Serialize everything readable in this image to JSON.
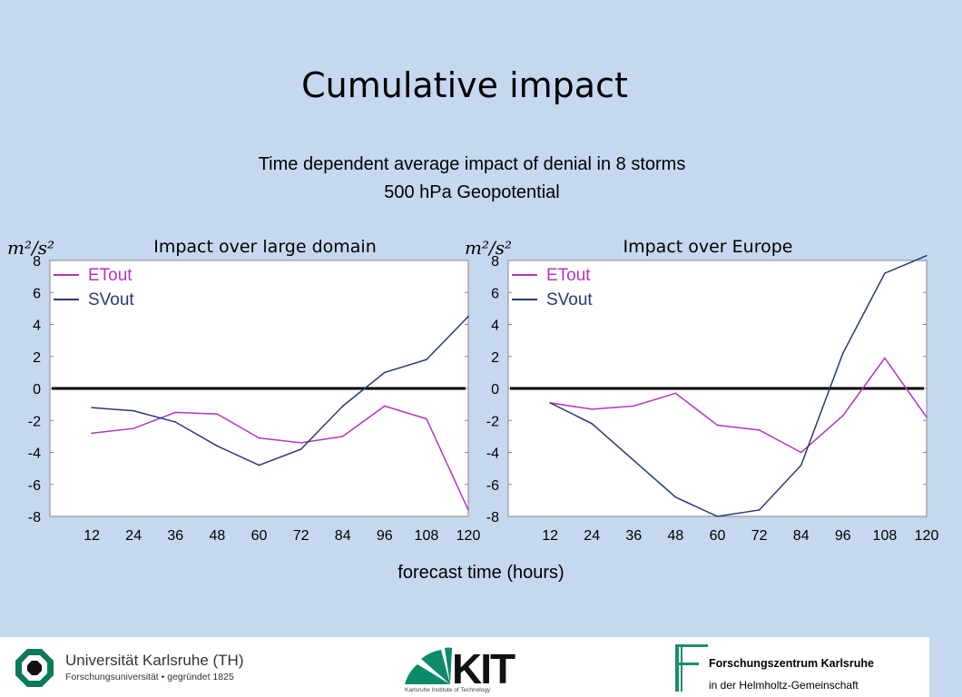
{
  "slide": {
    "title": "Cumulative impact",
    "subtitle_line1": "Time dependent average impact of denial in 8 storms",
    "subtitle_line2": "500 hPa Geopotential",
    "xlabel": "forecast time (hours)"
  },
  "colors": {
    "etout": "#b535c0",
    "svout": "#283a78",
    "zero_line": "#000000"
  },
  "chart_data": [
    {
      "type": "line",
      "title": "Impact over large domain",
      "ylabel": "m²/s²",
      "xlabel": "forecast time (hours)",
      "ylim": [
        -8,
        8
      ],
      "yticks": [
        8,
        6,
        4,
        2,
        0,
        -2,
        -4,
        -6,
        -8
      ],
      "xticks": [
        12,
        24,
        36,
        48,
        60,
        72,
        84,
        96,
        108,
        120
      ],
      "legend_position": "top-left",
      "series": [
        {
          "name": "ETout",
          "color": "#b535c0",
          "x": [
            12,
            24,
            36,
            48,
            60,
            72,
            84,
            96,
            108,
            120
          ],
          "y": [
            -2.8,
            -2.5,
            -1.5,
            -1.6,
            -3.1,
            -3.4,
            -3.0,
            -1.1,
            -1.9,
            -7.6
          ]
        },
        {
          "name": "SVout",
          "color": "#283a78",
          "x": [
            12,
            24,
            36,
            48,
            60,
            72,
            84,
            96,
            108,
            120
          ],
          "y": [
            -1.2,
            -1.4,
            -2.1,
            -3.6,
            -4.8,
            -3.8,
            -1.1,
            1.0,
            1.8,
            4.5
          ]
        }
      ]
    },
    {
      "type": "line",
      "title": "Impact over Europe",
      "ylabel": "m²/s²",
      "xlabel": "forecast time (hours)",
      "ylim": [
        -8,
        8
      ],
      "yticks": [
        8,
        6,
        4,
        2,
        0,
        -2,
        -4,
        -6,
        -8
      ],
      "xticks": [
        12,
        24,
        36,
        48,
        60,
        72,
        84,
        96,
        108,
        120
      ],
      "legend_position": "top-left",
      "series": [
        {
          "name": "ETout",
          "color": "#b535c0",
          "x": [
            12,
            24,
            36,
            48,
            60,
            72,
            84,
            96,
            108,
            120
          ],
          "y": [
            -0.9,
            -1.3,
            -1.1,
            -0.3,
            -2.3,
            -2.6,
            -4.0,
            -1.7,
            1.9,
            -1.8
          ]
        },
        {
          "name": "SVout",
          "color": "#283a78",
          "x": [
            12,
            24,
            36,
            48,
            60,
            72,
            84,
            96,
            108,
            120
          ],
          "y": [
            -0.9,
            -2.2,
            -4.5,
            -6.8,
            -8.0,
            -7.6,
            -4.8,
            2.2,
            7.2,
            8.3
          ]
        }
      ]
    }
  ],
  "footer": {
    "university_name": "Universität Karlsruhe (TH)",
    "university_sub": "Forschungsuniversität • gegründet 1825",
    "kit_logo_text": "KIT",
    "kit_sub": "Karlsruhe Institute of Technology",
    "fz_name": "Forschungszentrum Karlsruhe",
    "fz_sub": "in der Helmholtz-Gemeinschaft"
  }
}
